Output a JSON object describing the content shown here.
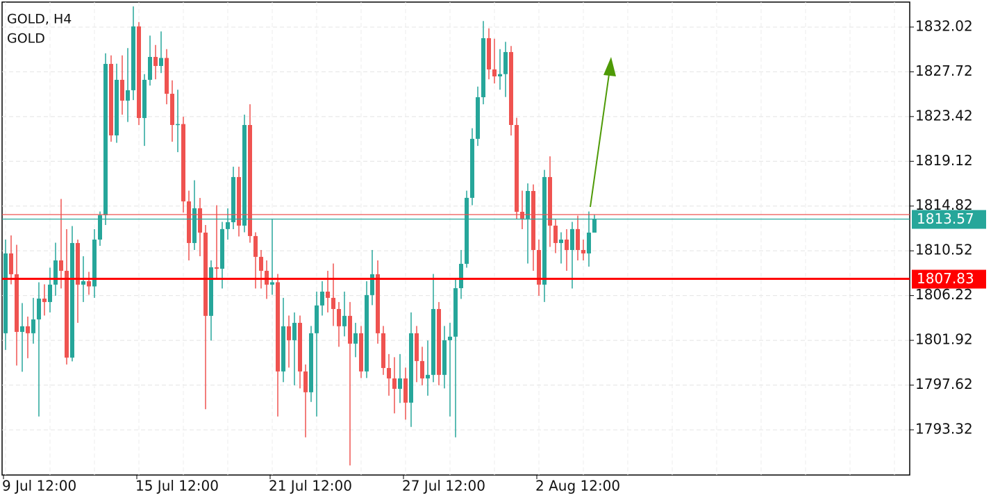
{
  "chart_data": {
    "type": "candlestick",
    "title": "GOLD, H4",
    "subtitle": "GOLD",
    "categories": [
      "9 Jul 12:00",
      null,
      null,
      null,
      null,
      null,
      null,
      null,
      null,
      null,
      null,
      null,
      null,
      null,
      null,
      null,
      null,
      null,
      null,
      null,
      null,
      null,
      null,
      null,
      "15 Jul 12:00",
      null,
      null,
      null,
      null,
      null,
      null,
      null,
      null,
      null,
      null,
      null,
      null,
      null,
      null,
      null,
      null,
      null,
      null,
      null,
      null,
      null,
      null,
      null,
      "21 Jul 12:00",
      null,
      null,
      null,
      null,
      null,
      null,
      null,
      null,
      null,
      null,
      null,
      null,
      null,
      null,
      null,
      null,
      null,
      null,
      null,
      null,
      null,
      null,
      null,
      "27 Jul 12:00",
      null,
      null,
      null,
      null,
      null,
      null,
      null,
      null,
      null,
      null,
      null,
      null,
      null,
      null,
      null,
      null,
      null,
      null,
      null,
      null,
      null,
      null,
      null,
      "2 Aug 12:00",
      null,
      null,
      null,
      null,
      null,
      null,
      null,
      null,
      null,
      null
    ],
    "open": [
      1802.6,
      1810.27,
      1808.27,
      1802.73,
      1803.27,
      1802.6,
      1803.93,
      1805.93,
      1805.6,
      1807.27,
      1809.6,
      1808.6,
      1800.26,
      1811.27,
      1807.27,
      1807.6,
      1807.1,
      1811.6,
      1813.94,
      1828.48,
      1821.61,
      1826.95,
      1824.95,
      1825.95,
      1832.08,
      1823.28,
      1826.95,
      1829.15,
      1828.28,
      1829.05,
      1825.61,
      1822.61,
      1822.7,
      1815.27,
      1811.27,
      1814.61,
      1812.27,
      1804.27,
      1808.94,
      1808.8,
      1812.61,
      1813.27,
      1817.61,
      1812.94,
      1822.61,
      1811.94,
      1809.94,
      1808.6,
      1807.27,
      1807.5,
      1798.93,
      1803.27,
      1801.93,
      1803.6,
      1798.93,
      1796.93,
      1802.6,
      1805.27,
      1806.6,
      1806.0,
      1804.93,
      1803.27,
      1804.27,
      1801.6,
      1802.6,
      1798.93,
      1806.27,
      1808.27,
      1802.6,
      1799.26,
      1798.26,
      1797.26,
      1798.26,
      1795.93,
      1802.6,
      1799.93,
      1798.26,
      1798.6,
      1804.93,
      1798.6,
      1801.93,
      1802.27,
      1806.93,
      1809.27,
      1815.61,
      1821.28,
      1825.28,
      1830.95,
      1827.95,
      1827.28,
      1827.5,
      1829.62,
      1822.61,
      1814.27,
      1813.61,
      1816.27,
      1810.6,
      1807.27,
      1817.61,
      1812.94,
      1811.27,
      1811.6,
      1810.6,
      1812.61,
      1810.6,
      1810.27,
      1812.27
    ],
    "high": [
      1811.6,
      1812.0,
      1811.1,
      1805.5,
      1804.2,
      1806.0,
      1807.5,
      1807.3,
      1808.9,
      1811.3,
      1815.5,
      1812.6,
      1812.9,
      1811.6,
      1810.0,
      1808.5,
      1812.6,
      1814.3,
      1829.5,
      1829.3,
      1828.5,
      1829.3,
      1830.0,
      1834.0,
      1832.5,
      1827.5,
      1831.2,
      1830.3,
      1831.6,
      1829.9,
      1826.9,
      1826.0,
      1823.4,
      1816.3,
      1817.3,
      1815.6,
      1813.0,
      1809.6,
      1814.9,
      1813.3,
      1814.6,
      1818.6,
      1818.6,
      1823.6,
      1824.6,
      1812.3,
      1810.6,
      1809.6,
      1813.6,
      1808.3,
      1806.0,
      1804.3,
      1804.6,
      1804.3,
      1799.6,
      1803.3,
      1806.6,
      1807.6,
      1808.6,
      1809.3,
      1805.6,
      1806.6,
      1805.6,
      1803.6,
      1803.3,
      1807.6,
      1810.6,
      1809.6,
      1803.3,
      1800.6,
      1800.3,
      1800.6,
      1799.3,
      1804.6,
      1803.3,
      1801.3,
      1801.9,
      1808.3,
      1805.6,
      1803.3,
      1803.6,
      1807.9,
      1810.6,
      1816.3,
      1822.3,
      1826.3,
      1832.6,
      1831.9,
      1830.9,
      1829.9,
      1830.6,
      1830.2,
      1823.3,
      1816.3,
      1817.0,
      1816.9,
      1811.6,
      1818.3,
      1819.6,
      1813.6,
      1812.3,
      1812.6,
      1813.3,
      1813.9,
      1811.6,
      1814.3,
      1814.0
    ],
    "low": [
      1801.0,
      1807.3,
      1799.5,
      1798.9,
      1800.2,
      1801.6,
      1794.6,
      1804.3,
      1804.6,
      1806.2,
      1806.9,
      1799.6,
      1799.9,
      1803.6,
      1805.6,
      1806.3,
      1806.0,
      1811.0,
      1813.0,
      1821.0,
      1820.9,
      1823.6,
      1822.9,
      1825.0,
      1822.6,
      1820.6,
      1826.4,
      1827.0,
      1827.6,
      1824.6,
      1821.0,
      1820.0,
      1814.2,
      1809.6,
      1810.6,
      1810.0,
      1795.3,
      1801.9,
      1807.9,
      1806.9,
      1811.6,
      1812.6,
      1811.9,
      1812.3,
      1811.3,
      1806.9,
      1806.9,
      1805.9,
      1806.3,
      1794.6,
      1797.9,
      1799.3,
      1797.6,
      1797.3,
      1792.6,
      1796.0,
      1794.6,
      1804.3,
      1804.6,
      1803.3,
      1801.3,
      1802.3,
      1789.9,
      1800.3,
      1798.3,
      1798.3,
      1805.3,
      1801.6,
      1798.6,
      1796.6,
      1794.9,
      1795.9,
      1794.3,
      1793.6,
      1797.9,
      1797.6,
      1796.6,
      1797.9,
      1797.6,
      1797.3,
      1794.6,
      1792.6,
      1805.9,
      1808.9,
      1814.9,
      1820.6,
      1824.6,
      1827.0,
      1826.6,
      1826.0,
      1825.3,
      1821.6,
      1813.6,
      1812.6,
      1809.3,
      1808.6,
      1806.2,
      1805.6,
      1810.9,
      1810.3,
      1809.3,
      1808.6,
      1806.9,
      1809.6,
      1809.6,
      1809.0,
      1812.6
    ],
    "close": [
      1810.27,
      1808.27,
      1802.73,
      1803.27,
      1802.6,
      1803.93,
      1805.93,
      1805.6,
      1807.27,
      1809.6,
      1808.6,
      1800.26,
      1811.27,
      1807.27,
      1807.6,
      1807.1,
      1811.6,
      1813.94,
      1828.48,
      1821.61,
      1826.95,
      1824.95,
      1825.95,
      1832.08,
      1823.28,
      1826.95,
      1829.15,
      1828.28,
      1829.05,
      1825.61,
      1822.61,
      1822.7,
      1815.27,
      1811.27,
      1814.61,
      1812.27,
      1804.27,
      1808.94,
      1808.8,
      1812.61,
      1813.27,
      1817.61,
      1812.94,
      1822.61,
      1811.94,
      1809.94,
      1808.6,
      1807.27,
      1807.5,
      1798.93,
      1803.27,
      1801.93,
      1803.6,
      1798.93,
      1796.93,
      1802.6,
      1805.27,
      1806.6,
      1806.0,
      1804.93,
      1803.27,
      1804.27,
      1801.6,
      1802.6,
      1798.93,
      1806.27,
      1808.27,
      1802.6,
      1799.26,
      1798.26,
      1797.26,
      1798.26,
      1795.93,
      1802.6,
      1799.93,
      1798.26,
      1798.6,
      1804.93,
      1798.6,
      1801.93,
      1802.27,
      1806.93,
      1809.27,
      1815.61,
      1821.28,
      1825.28,
      1830.95,
      1827.95,
      1827.28,
      1827.5,
      1829.62,
      1822.61,
      1814.27,
      1813.61,
      1816.27,
      1810.6,
      1807.27,
      1817.61,
      1812.94,
      1811.27,
      1811.6,
      1810.6,
      1812.61,
      1810.6,
      1810.27,
      1812.27,
      1813.57
    ],
    "up_color": "#26a69a",
    "down_color": "#ef5350",
    "ylim": [
      1788.98,
      1834.62
    ],
    "yticks": [
      1832.02,
      1827.72,
      1823.42,
      1819.12,
      1814.82,
      1810.52,
      1806.22,
      1801.92,
      1797.62,
      1793.32
    ],
    "grid": true,
    "last_price": 1813.57,
    "last_price_color": "#26a69a",
    "ask_price": 1814.0,
    "ask_color": "#ef5350",
    "level": 1807.83,
    "level_color": "#ff0000"
  }
}
